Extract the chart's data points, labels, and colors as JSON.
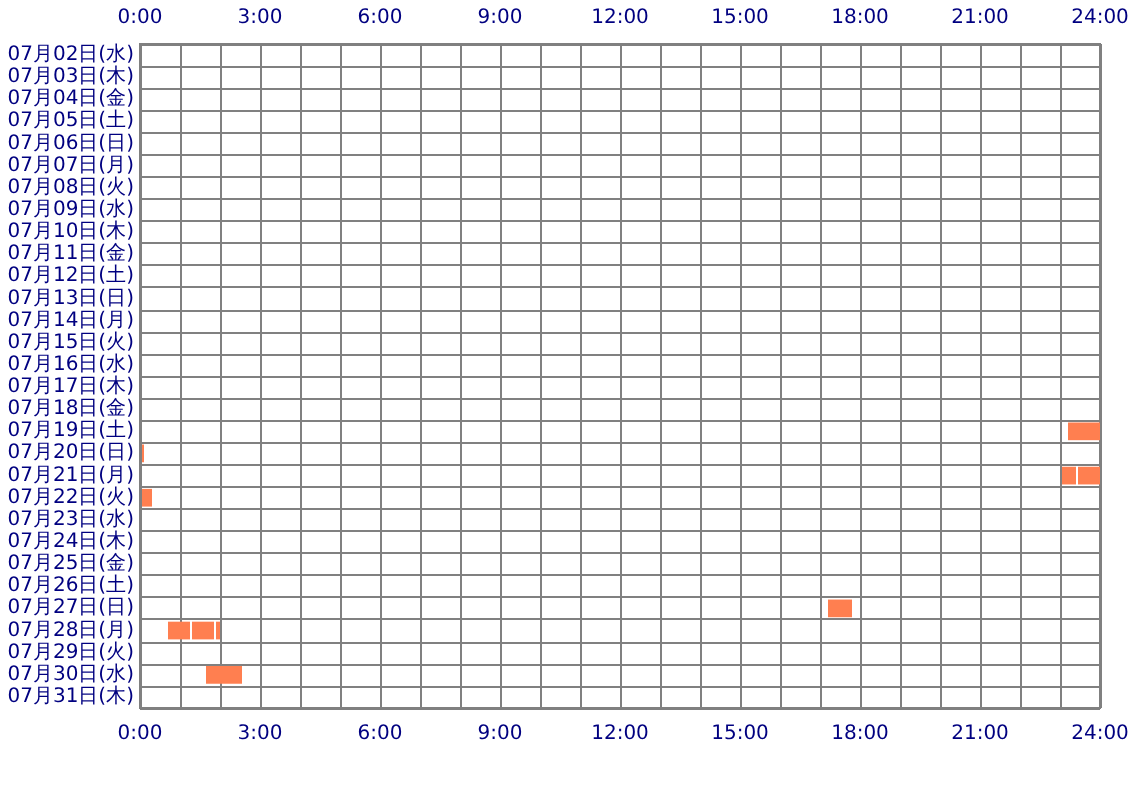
{
  "chart_data": {
    "type": "bar",
    "orientation": "horizontal",
    "categories": [
      "07月02日(水)",
      "07月03日(木)",
      "07月04日(金)",
      "07月05日(土)",
      "07月06日(日)",
      "07月07日(月)",
      "07月08日(火)",
      "07月09日(水)",
      "07月10日(木)",
      "07月11日(金)",
      "07月12日(土)",
      "07月13日(日)",
      "07月14日(月)",
      "07月15日(火)",
      "07月16日(水)",
      "07月17日(木)",
      "07月18日(金)",
      "07月19日(土)",
      "07月20日(日)",
      "07月21日(月)",
      "07月22日(火)",
      "07月23日(水)",
      "07月24日(木)",
      "07月25日(金)",
      "07月26日(土)",
      "07月27日(日)",
      "07月28日(月)",
      "07月29日(火)",
      "07月30日(水)",
      "07月31日(木)"
    ],
    "series": [
      {
        "color": "#ff7f50",
        "base": [
          null,
          null,
          null,
          null,
          null,
          null,
          null,
          null,
          null,
          null,
          null,
          null,
          null,
          null,
          null,
          null,
          null,
          23.2,
          0.05,
          23.05,
          0.05,
          null,
          null,
          null,
          null,
          17.2,
          0.7,
          null,
          1.65,
          null
        ],
        "values": [
          null,
          null,
          null,
          null,
          null,
          null,
          null,
          null,
          null,
          null,
          null,
          null,
          null,
          null,
          null,
          null,
          null,
          0.8,
          0.05,
          0.35,
          0.25,
          null,
          null,
          null,
          null,
          0.6,
          0.55,
          null,
          0.9,
          null
        ]
      },
      {
        "color": "#ff7f50",
        "base": [
          null,
          null,
          null,
          null,
          null,
          null,
          null,
          null,
          null,
          null,
          null,
          null,
          null,
          null,
          null,
          null,
          null,
          null,
          null,
          23.45,
          null,
          null,
          null,
          null,
          null,
          null,
          1.3,
          null,
          null,
          null
        ],
        "values": [
          null,
          null,
          null,
          null,
          null,
          null,
          null,
          null,
          null,
          null,
          null,
          null,
          null,
          null,
          null,
          null,
          null,
          null,
          null,
          0.55,
          null,
          null,
          null,
          null,
          null,
          null,
          0.55,
          null,
          null,
          null
        ]
      },
      {
        "color": "#ff7f50",
        "base": [
          null,
          null,
          null,
          null,
          null,
          null,
          null,
          null,
          null,
          null,
          null,
          null,
          null,
          null,
          null,
          null,
          null,
          null,
          null,
          null,
          null,
          null,
          null,
          null,
          null,
          null,
          1.9,
          null,
          null,
          null
        ],
        "values": [
          null,
          null,
          null,
          null,
          null,
          null,
          null,
          null,
          null,
          null,
          null,
          null,
          null,
          null,
          null,
          null,
          null,
          null,
          null,
          null,
          null,
          null,
          null,
          null,
          null,
          null,
          0.1,
          null,
          null,
          null
        ]
      }
    ],
    "xlim": [
      0,
      24
    ],
    "xticks": [
      {
        "value": 0,
        "label": "0:00"
      },
      {
        "value": 1,
        "label": null
      },
      {
        "value": 2,
        "label": null
      },
      {
        "value": 3,
        "label": "3:00"
      },
      {
        "value": 4,
        "label": null
      },
      {
        "value": 5,
        "label": null
      },
      {
        "value": 6,
        "label": "6:00"
      },
      {
        "value": 7,
        "label": null
      },
      {
        "value": 8,
        "label": null
      },
      {
        "value": 9,
        "label": "9:00"
      },
      {
        "value": 10,
        "label": null
      },
      {
        "value": 11,
        "label": null
      },
      {
        "value": 12,
        "label": "12:00"
      },
      {
        "value": 13,
        "label": null
      },
      {
        "value": 14,
        "label": null
      },
      {
        "value": 15,
        "label": "15:00"
      },
      {
        "value": 16,
        "label": null
      },
      {
        "value": 17,
        "label": null
      },
      {
        "value": 18,
        "label": "18:00"
      },
      {
        "value": 19,
        "label": null
      },
      {
        "value": 20,
        "label": null
      },
      {
        "value": 21,
        "label": "21:00"
      },
      {
        "value": 22,
        "label": null
      },
      {
        "value": 23,
        "label": null
      },
      {
        "value": 24,
        "label": "24:00"
      }
    ],
    "x2lim": [
      0,
      24
    ],
    "x2ticks": [
      {
        "value": 0,
        "label": "0:00"
      },
      {
        "value": 1,
        "label": null
      },
      {
        "value": 2,
        "label": null
      },
      {
        "value": 3,
        "label": "3:00"
      },
      {
        "value": 4,
        "label": null
      },
      {
        "value": 5,
        "label": null
      },
      {
        "value": 6,
        "label": "6:00"
      },
      {
        "value": 7,
        "label": null
      },
      {
        "value": 8,
        "label": null
      },
      {
        "value": 9,
        "label": "9:00"
      },
      {
        "value": 10,
        "label": null
      },
      {
        "value": 11,
        "label": null
      },
      {
        "value": 12,
        "label": "12:00"
      },
      {
        "value": 13,
        "label": null
      },
      {
        "value": 14,
        "label": null
      },
      {
        "value": 15,
        "label": "15:00"
      },
      {
        "value": 16,
        "label": null
      },
      {
        "value": 17,
        "label": null
      },
      {
        "value": 18,
        "label": "18:00"
      },
      {
        "value": 19,
        "label": null
      },
      {
        "value": 20,
        "label": null
      },
      {
        "value": 21,
        "label": "21:00"
      },
      {
        "value": 22,
        "label": null
      },
      {
        "value": 23,
        "label": null
      },
      {
        "value": 24,
        "label": "24:00"
      }
    ],
    "grid": true
  }
}
